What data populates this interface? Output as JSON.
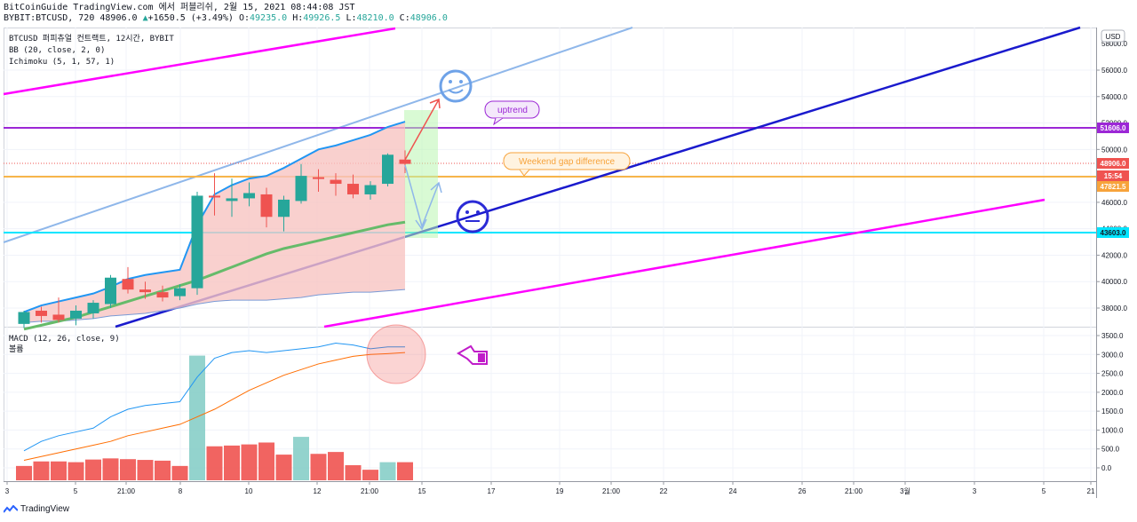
{
  "header": {
    "line1": "BitCoinGuide TradingView.com 에서 퍼블리쉬, 2월 15, 2021 08:44:08 JST",
    "symbol": "BYBIT:BTCUSD, 720",
    "last": "48906.0",
    "change_arrow": "▲",
    "change": "+1650.5 (+3.49%)",
    "o_label": "O:",
    "o": "49235.0",
    "h_label": "H:",
    "h": "49926.5",
    "l_label": "L:",
    "l": "48210.0",
    "c_label": "C:",
    "c": "48906.0"
  },
  "legend": {
    "main": "BTCUSD 퍼피츄얼 컨트랙트, 12시간, BYBIT",
    "bb": "BB (20, close, 2, 0)",
    "ichimoku": "Ichimoku (5, 1, 57, 1)",
    "macd": "MACD (12, 26, close, 9)",
    "volume": "볼륨"
  },
  "currency_badge": "USD",
  "footer_brand": "TradingView",
  "colors": {
    "up": "#26a69a",
    "down": "#ef5350",
    "magenta": "#ff00ff",
    "purple": "#9c27d6",
    "orange": "#f7b54a",
    "cyan": "#00e5ff",
    "navy": "#1a1acd",
    "lightblue": "#8fb7ea",
    "bbfill": "#f8c4c2",
    "ichimoku_green": "#66bb6a",
    "bb_upper": "#2196f3"
  },
  "chart_data": {
    "type": "candlestick",
    "x_tick_labels": [
      "3",
      "5",
      "21:00",
      "8",
      "10",
      "12",
      "21:00",
      "15",
      "17",
      "19",
      "21:00",
      "22",
      "24",
      "26",
      "21:00",
      "3월",
      "3",
      "5",
      "21"
    ],
    "price_axis": {
      "ylim": [
        36600,
        56800
      ],
      "ticks": [
        38000,
        40000,
        42000,
        44000,
        46000,
        48000,
        50000,
        52000,
        54000,
        56000
      ],
      "tick_labels": [
        "38000.0",
        "40000.0",
        "42000.0",
        "44000.0",
        "46000.0",
        "48000.0",
        "50000.0",
        "52000.0",
        "54000.0",
        "56000.0"
      ],
      "top_partial_label": "58000.0",
      "badges": [
        {
          "label": "51606.0",
          "value": 51606,
          "color": "#9c27d6"
        },
        {
          "label": "48906.0",
          "value": 48906,
          "color": "#ef5350"
        },
        {
          "label": "15:54",
          "value": 48300,
          "color": "#ef5350"
        },
        {
          "label": "47821.5",
          "value": 47821.5,
          "color": "#f7a33b"
        },
        {
          "label": "43603.0",
          "value": 43603,
          "color": "#00e5ff"
        }
      ]
    },
    "candles": [
      {
        "o": 36800,
        "h": 37800,
        "l": 36500,
        "c": 37700
      },
      {
        "o": 37800,
        "h": 38100,
        "l": 36900,
        "c": 37400
      },
      {
        "o": 37500,
        "h": 38800,
        "l": 36900,
        "c": 37100
      },
      {
        "o": 37200,
        "h": 38200,
        "l": 36700,
        "c": 37800
      },
      {
        "o": 37600,
        "h": 38600,
        "l": 37200,
        "c": 38400
      },
      {
        "o": 38300,
        "h": 40500,
        "l": 38000,
        "c": 40300
      },
      {
        "o": 40200,
        "h": 41100,
        "l": 39100,
        "c": 39400
      },
      {
        "o": 39400,
        "h": 40000,
        "l": 38700,
        "c": 39200
      },
      {
        "o": 39200,
        "h": 39700,
        "l": 38500,
        "c": 38800
      },
      {
        "o": 38900,
        "h": 39800,
        "l": 38600,
        "c": 39500
      },
      {
        "o": 39500,
        "h": 46800,
        "l": 39000,
        "c": 46500
      },
      {
        "o": 46500,
        "h": 48200,
        "l": 45000,
        "c": 46400
      },
      {
        "o": 46100,
        "h": 47800,
        "l": 44900,
        "c": 46300
      },
      {
        "o": 46300,
        "h": 47500,
        "l": 45700,
        "c": 46700
      },
      {
        "o": 46600,
        "h": 47100,
        "l": 44100,
        "c": 44900
      },
      {
        "o": 44900,
        "h": 46500,
        "l": 43800,
        "c": 46200
      },
      {
        "o": 46100,
        "h": 48900,
        "l": 45900,
        "c": 48000
      },
      {
        "o": 47900,
        "h": 48500,
        "l": 46800,
        "c": 47800
      },
      {
        "o": 47700,
        "h": 48200,
        "l": 46500,
        "c": 47400
      },
      {
        "o": 47400,
        "h": 48100,
        "l": 46300,
        "c": 46600
      },
      {
        "o": 46600,
        "h": 47600,
        "l": 46200,
        "c": 47300
      },
      {
        "o": 47400,
        "h": 49700,
        "l": 47200,
        "c": 49600
      },
      {
        "o": 49235,
        "h": 49926.5,
        "l": 48210,
        "c": 48906
      }
    ],
    "bollinger_upper": [
      37700,
      38200,
      38500,
      38800,
      39100,
      39600,
      40200,
      40500,
      40700,
      40900,
      44300,
      46600,
      47300,
      47800,
      48000,
      48600,
      49300,
      50000,
      50300,
      50700,
      51100,
      51700,
      52100
    ],
    "bollinger_lower": [
      36900,
      37000,
      37000,
      37100,
      37200,
      37400,
      37500,
      37600,
      37800,
      38000,
      38300,
      38500,
      38600,
      38600,
      38600,
      38700,
      38800,
      39000,
      39100,
      39200,
      39200,
      39300,
      39400
    ],
    "ichimoku_line": [
      36400,
      36700,
      37000,
      37300,
      37700,
      38100,
      38500,
      38900,
      39300,
      39700,
      40100,
      40600,
      41100,
      41600,
      42100,
      42500,
      42800,
      43100,
      43400,
      43700,
      44000,
      44300,
      44500
    ],
    "macd_axis": {
      "ylim": [
        -400,
        3600
      ],
      "ticks": [
        0,
        500,
        1000,
        1500,
        2000,
        2500,
        3000,
        3500
      ],
      "tick_labels": [
        "0.0",
        "500.0",
        "1000.0",
        "1500.0",
        "2000.0",
        "2500.0",
        "3000.0",
        "3500.0"
      ]
    },
    "macd_line": [
      450,
      700,
      850,
      950,
      1050,
      1350,
      1550,
      1650,
      1700,
      1750,
      2400,
      2900,
      3050,
      3100,
      3050,
      3100,
      3150,
      3200,
      3300,
      3250,
      3150,
      3200,
      3200
    ],
    "signal_line": [
      200,
      300,
      400,
      500,
      600,
      700,
      850,
      950,
      1050,
      1150,
      1350,
      1550,
      1800,
      2050,
      2250,
      2450,
      2600,
      2750,
      2850,
      2950,
      3000,
      3020,
      3050
    ],
    "volume": [
      {
        "v": 380,
        "dir": "down"
      },
      {
        "v": 500,
        "dir": "down"
      },
      {
        "v": 500,
        "dir": "down"
      },
      {
        "v": 480,
        "dir": "down"
      },
      {
        "v": 550,
        "dir": "down"
      },
      {
        "v": 580,
        "dir": "down"
      },
      {
        "v": 560,
        "dir": "down"
      },
      {
        "v": 540,
        "dir": "down"
      },
      {
        "v": 520,
        "dir": "down"
      },
      {
        "v": 380,
        "dir": "down"
      },
      {
        "v": 3300,
        "dir": "up"
      },
      {
        "v": 900,
        "dir": "down"
      },
      {
        "v": 920,
        "dir": "down"
      },
      {
        "v": 950,
        "dir": "down"
      },
      {
        "v": 1000,
        "dir": "down"
      },
      {
        "v": 680,
        "dir": "down"
      },
      {
        "v": 1150,
        "dir": "up"
      },
      {
        "v": 700,
        "dir": "down"
      },
      {
        "v": 750,
        "dir": "down"
      },
      {
        "v": 400,
        "dir": "down"
      },
      {
        "v": 280,
        "dir": "down"
      },
      {
        "v": 480,
        "dir": "up"
      },
      {
        "v": 480,
        "dir": "down"
      }
    ],
    "annotations": [
      {
        "text": "uptrend",
        "color": "#9c27d6"
      },
      {
        "text": "Weekend gap difference",
        "color": "#f7a33b"
      }
    ]
  }
}
